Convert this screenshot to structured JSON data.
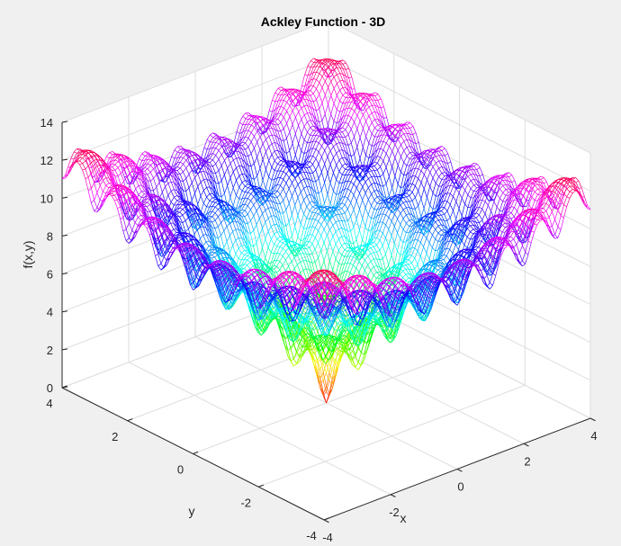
{
  "chart_data": {
    "type": "surface-mesh",
    "title": "Ackley Function - 3D",
    "xlabel": "x",
    "ylabel": "y",
    "zlabel": "f(x,y)",
    "function": "ackley",
    "x_range": [
      -4,
      4
    ],
    "y_range": [
      -4,
      4
    ],
    "zlim": [
      0,
      14
    ],
    "x_ticks": [
      "-4",
      "-2",
      "0",
      "2",
      "4"
    ],
    "y_ticks": [
      "-4",
      "-2",
      "0",
      "2",
      "4"
    ],
    "z_ticks": [
      "0",
      "2",
      "4",
      "6",
      "8",
      "10",
      "12",
      "14"
    ],
    "grid": true,
    "colormap": "hsv",
    "view": "3d-isometric",
    "peak_minimum": {
      "x": 0,
      "y": 0,
      "z": 0
    },
    "corner_maximum_approx": 12.6
  }
}
